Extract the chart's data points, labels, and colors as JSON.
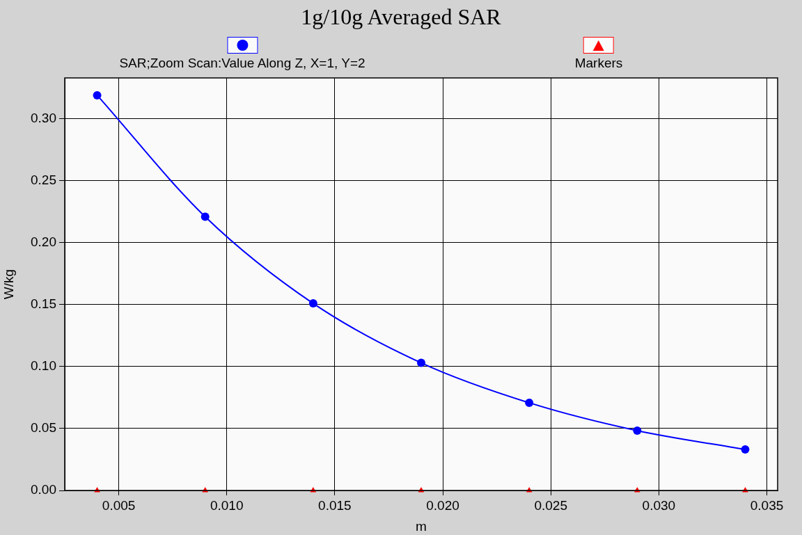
{
  "chart_data": {
    "type": "line",
    "title": "1g/10g Averaged SAR",
    "xlabel": "m",
    "ylabel": "W/kg",
    "x": [
      0.004,
      0.009,
      0.014,
      0.019,
      0.024,
      0.029,
      0.034
    ],
    "series": [
      {
        "name": "SAR;Zoom Scan:Value Along Z, X=1, Y=2",
        "color": "#0000ff",
        "marker": "circle",
        "values": [
          0.319,
          0.221,
          0.151,
          0.103,
          0.0708,
          0.0483,
          0.0331
        ]
      },
      {
        "name": "Markers",
        "type": "scatter",
        "color": "#ff0000",
        "marker": "triangle",
        "values": [
          0,
          0,
          0,
          0,
          0,
          0,
          0
        ]
      }
    ],
    "xlim": [
      0.0025,
      0.0355
    ],
    "xticks": [
      {
        "value": 0.005,
        "label": "0.005"
      },
      {
        "value": 0.01,
        "label": "0.010"
      },
      {
        "value": 0.015,
        "label": "0.015"
      },
      {
        "value": 0.02,
        "label": "0.020"
      },
      {
        "value": 0.025,
        "label": "0.025"
      },
      {
        "value": 0.03,
        "label": "0.030"
      },
      {
        "value": 0.035,
        "label": "0.035"
      }
    ],
    "ylim": [
      0,
      0.333
    ],
    "yticks": [
      {
        "value": 0,
        "label": "0.00"
      },
      {
        "value": 0.05,
        "label": "0.05"
      },
      {
        "value": 0.1,
        "label": "0.10"
      },
      {
        "value": 0.15,
        "label": "0.15"
      },
      {
        "value": 0.2,
        "label": "0.20"
      },
      {
        "value": 0.25,
        "label": "0.25"
      },
      {
        "value": 0.3,
        "label": "0.30"
      }
    ],
    "grid": true,
    "legend": "top",
    "line_style": "solid"
  }
}
